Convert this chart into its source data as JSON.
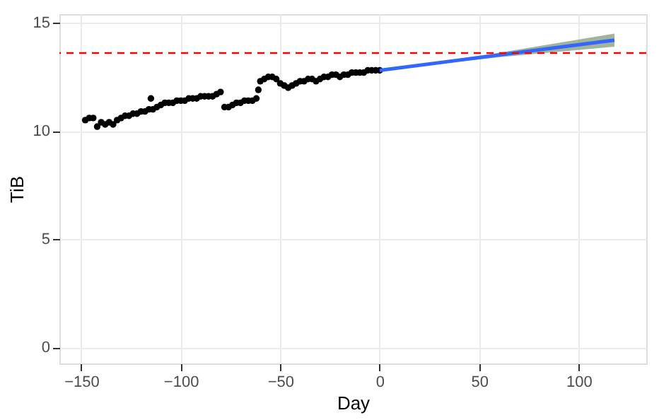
{
  "chart_data": {
    "type": "scatter",
    "xlabel": "Day",
    "ylabel": "TiB",
    "xlim": [
      -161,
      134
    ],
    "ylim": [
      -0.75,
      15.4
    ],
    "xticks": [
      -150,
      -100,
      -50,
      0,
      50,
      100
    ],
    "yticks": [
      0,
      5,
      10,
      15
    ],
    "grid": true,
    "series": [
      {
        "color": "#000000",
        "marker": "circle",
        "x": [
          -148,
          -146,
          -144,
          -142,
          -140,
          -138,
          -136,
          -134,
          -132,
          -130,
          -128,
          -126,
          -124,
          -122,
          -120,
          -118,
          -116,
          -115,
          -114,
          -112,
          -110,
          -108,
          -106,
          -104,
          -102,
          -100,
          -98,
          -96,
          -94,
          -92,
          -90,
          -88,
          -86,
          -84,
          -82,
          -80,
          -78,
          -76,
          -74,
          -72,
          -70,
          -68,
          -66,
          -64,
          -62,
          -61,
          -60,
          -58,
          -56,
          -54,
          -52,
          -50,
          -48,
          -46,
          -44,
          -42,
          -40,
          -38,
          -36,
          -34,
          -32,
          -30,
          -28,
          -26,
          -24,
          -22,
          -20,
          -18,
          -16,
          -14,
          -12,
          -10,
          -8,
          -6,
          -4,
          -2,
          0
        ],
        "values": [
          10.5,
          10.6,
          10.6,
          10.2,
          10.4,
          10.3,
          10.4,
          10.3,
          10.5,
          10.6,
          10.7,
          10.7,
          10.8,
          10.8,
          10.9,
          10.9,
          11.0,
          11.5,
          11.0,
          11.1,
          11.2,
          11.3,
          11.3,
          11.3,
          11.4,
          11.4,
          11.4,
          11.5,
          11.5,
          11.5,
          11.6,
          11.6,
          11.6,
          11.6,
          11.7,
          11.8,
          11.1,
          11.1,
          11.2,
          11.3,
          11.3,
          11.4,
          11.4,
          11.4,
          11.5,
          11.9,
          12.3,
          12.4,
          12.5,
          12.5,
          12.4,
          12.2,
          12.1,
          12.0,
          12.1,
          12.2,
          12.3,
          12.3,
          12.4,
          12.4,
          12.3,
          12.4,
          12.5,
          12.5,
          12.6,
          12.6,
          12.5,
          12.6,
          12.6,
          12.7,
          12.7,
          12.7,
          12.7,
          12.8,
          12.8,
          12.8,
          12.8
        ]
      },
      {
        "type": "line",
        "color": "#3366ff",
        "x": [
          0,
          59,
          118
        ],
        "values": [
          12.8,
          13.5,
          14.2
        ],
        "lower": [
          12.8,
          13.4,
          13.9
        ],
        "upper": [
          12.8,
          13.6,
          14.5
        ]
      }
    ],
    "ref_lines": [
      {
        "axis": "y",
        "value": 13.6,
        "color": "#ff0000",
        "line_style": "dashed"
      }
    ]
  }
}
